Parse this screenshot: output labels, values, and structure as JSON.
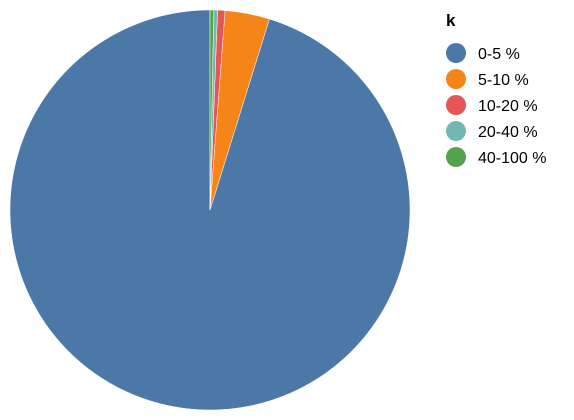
{
  "chart_data": {
    "type": "pie",
    "title": "",
    "legend": {
      "title": "k",
      "placement": "right"
    },
    "slices": [
      {
        "label": "0-5 %",
        "value": 95.2,
        "color": "#4c78a8"
      },
      {
        "label": "5-10 %",
        "value": 3.6,
        "color": "#f58518"
      },
      {
        "label": "10-20 %",
        "value": 0.6,
        "color": "#e45756"
      },
      {
        "label": "20-40 %",
        "value": 0.3,
        "color": "#72b7b2"
      },
      {
        "label": "40-100 %",
        "value": 0.3,
        "color": "#54a24b"
      }
    ],
    "order": "counterclockwise from top"
  }
}
